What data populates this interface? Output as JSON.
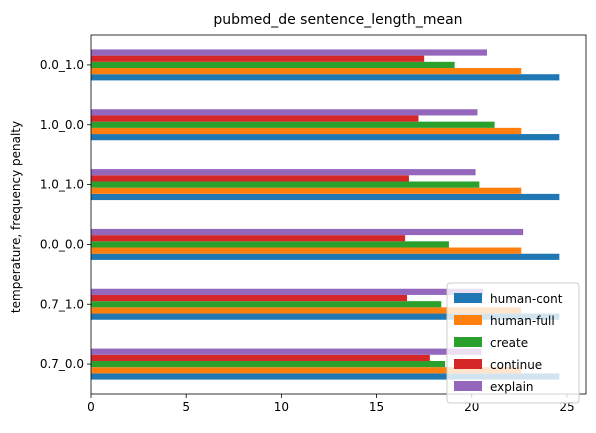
{
  "chart_data": {
    "type": "bar",
    "orientation": "horizontal",
    "title": "pubmed_de sentence_length_mean",
    "xlabel": "",
    "ylabel": "temperature, frequency penalty",
    "xlim": [
      0,
      26
    ],
    "xticks": [
      0,
      5,
      10,
      15,
      20,
      25
    ],
    "categories": [
      "0.7_0.0",
      "0.7_1.0",
      "0.0_0.0",
      "1.0_1.0",
      "1.0_0.0",
      "0.0_1.0"
    ],
    "series": [
      {
        "name": "human-cont",
        "color": "#1f77b4",
        "values": [
          24.6,
          24.6,
          24.6,
          24.6,
          24.6,
          24.6
        ]
      },
      {
        "name": "human-full",
        "color": "#ff7f0e",
        "values": [
          22.6,
          22.6,
          22.6,
          22.6,
          22.6,
          22.6
        ]
      },
      {
        "name": "create",
        "color": "#2ca02c",
        "values": [
          18.6,
          18.4,
          18.8,
          20.4,
          21.2,
          19.1
        ]
      },
      {
        "name": "continue",
        "color": "#d62728",
        "values": [
          17.8,
          16.6,
          16.5,
          16.7,
          17.2,
          17.5
        ]
      },
      {
        "name": "explain",
        "color": "#9467bd",
        "values": [
          20.5,
          20.6,
          22.7,
          20.2,
          20.3,
          20.8
        ]
      }
    ],
    "legend_position": "lower-right",
    "grid": false
  }
}
